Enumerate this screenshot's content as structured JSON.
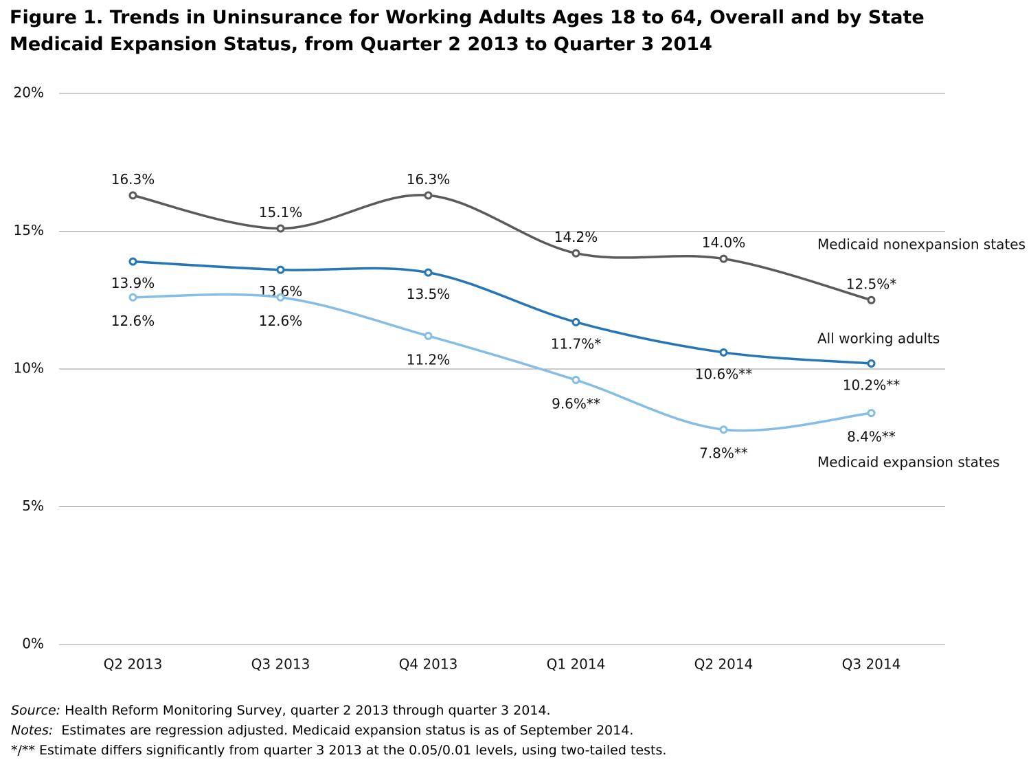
{
  "chart_data": {
    "type": "line",
    "title": "Figure 1. Trends in Uninsurance for Working Adults Ages 18 to 64, Overall and by State Medicaid Expansion Status, from Quarter 2 2013 to Quarter 3 2014",
    "categories": [
      "Q2 2013",
      "Q3 2013",
      "Q4 2013",
      "Q1 2014",
      "Q2 2014",
      "Q3 2014"
    ],
    "series": [
      {
        "name": "Medicaid nonexpansion states",
        "color": "#5a5a5a",
        "values": [
          16.3,
          15.1,
          16.3,
          14.2,
          14.0,
          12.5
        ],
        "value_labels": [
          "16.3%",
          "15.1%",
          "16.3%",
          "14.2%",
          "14.0%",
          "12.5%*"
        ]
      },
      {
        "name": "All working adults",
        "color": "#2676b5",
        "values": [
          13.9,
          13.6,
          13.5,
          11.7,
          10.6,
          10.2
        ],
        "value_labels": [
          "13.9%",
          "13.6%",
          "13.5%",
          "11.7%*",
          "10.6%**",
          "10.2%**"
        ]
      },
      {
        "name": "Medicaid expansion states",
        "color": "#84bde6",
        "values": [
          12.6,
          12.6,
          11.2,
          9.6,
          7.8,
          8.4
        ],
        "value_labels": [
          "12.6%",
          "12.6%",
          "11.2%",
          "9.6%**",
          "7.8%**",
          "8.4%**"
        ]
      }
    ],
    "ylim": [
      0,
      20
    ],
    "yticks": [
      {
        "value": 0,
        "label": "0%"
      },
      {
        "value": 5,
        "label": "5%"
      },
      {
        "value": 10,
        "label": "10%"
      },
      {
        "value": 15,
        "label": "15%"
      },
      {
        "value": 20,
        "label": "20%"
      }
    ],
    "grid": true,
    "smooth": true
  },
  "notes": [
    {
      "label": "Source:",
      "text": "Health Reform Monitoring Survey, quarter 2 2013 through quarter 3 2014."
    },
    {
      "label": "Notes:",
      "text": "Estimates are regression adjusted. Medicaid expansion status is as of September 2014."
    },
    {
      "text": "*/** Estimate differs significantly from quarter 3 2013 at the 0.05/0.01 levels, using two-tailed tests."
    }
  ]
}
